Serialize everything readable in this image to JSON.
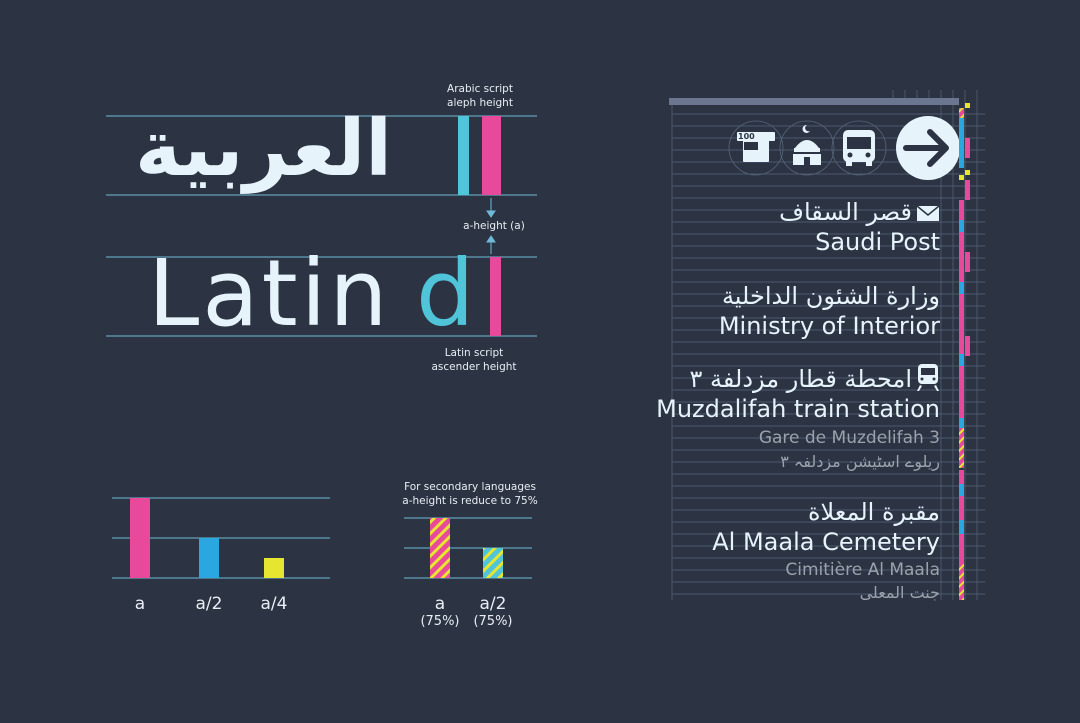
{
  "colors": {
    "background": "#2c3444",
    "guide": "#6fb8d6",
    "pink": "#e8499b",
    "cyan": "#50c4d8",
    "blue": "#2aa6e0",
    "yellow": "#e6e630",
    "text": "#e6f3fb",
    "grey": "#9aa3ad"
  },
  "specimen": {
    "arabic_word": "العربية",
    "latin_word": "Latin",
    "latin_letter": "d",
    "arabic_label_line1": "Arabic script",
    "arabic_label_line2": "aleph height",
    "a_height_label": "a-height (a)",
    "latin_label_line1": "Latin script",
    "latin_label_line2": "ascender height"
  },
  "scale": {
    "note_line1": "For secondary languages",
    "note_line2": "a-height is reduce to 75%",
    "primary": [
      {
        "label": "a",
        "value": 1,
        "color": "pink"
      },
      {
        "label": "a/2",
        "value": 0.5,
        "color": "blue"
      },
      {
        "label": "a/4",
        "value": 0.25,
        "color": "yellow"
      }
    ],
    "secondary": [
      {
        "label": "a",
        "sub": "(75%)",
        "value": 1,
        "color": "pink"
      },
      {
        "label": "a/2",
        "sub": "(75%)",
        "value": 0.5,
        "color": "cyan"
      }
    ]
  },
  "sign": {
    "icons": [
      "atm-100-icon",
      "mosque-icon",
      "bus-icon",
      "arrow-right-icon"
    ],
    "atm_text": "100",
    "entries": [
      {
        "icon": "envelope-icon",
        "arabic": "قصر السقاف",
        "english": "Saudi Post"
      },
      {
        "arabic": "وزارة الشئون الداخلية",
        "english": "Ministry of Interior"
      },
      {
        "icon": "train-icon",
        "arabic": "امحطة قطار مزدلفة ٣",
        "english": "Muzdalifah train station",
        "secondary": "Gare de Muzdelifah 3",
        "secondary_ar": "ریلوے اسٹیشن مزدلفہ ۳"
      },
      {
        "arabic": "مقبرة المعلاة",
        "english": "Al Maala Cemetery",
        "secondary": "Cimitière Al Maala",
        "secondary_ar": "جنت المعلی"
      }
    ]
  }
}
